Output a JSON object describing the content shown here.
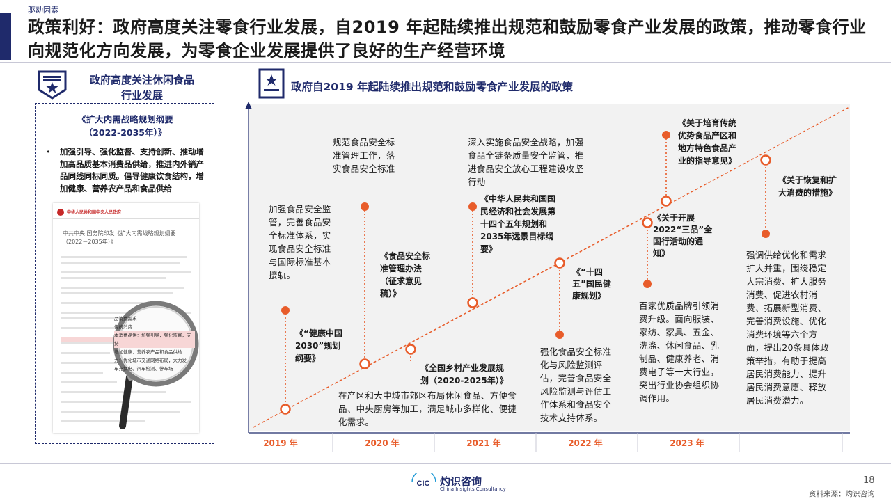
{
  "header": {
    "tag": "驱动因素",
    "title": "政策利好：政府高度关注零食行业发展，自2019 年起陆续推出规范和鼓励零食产业发展的政策，推动零食行业向规范化方向发展，为零食企业发展提供了良好的生产经营环境"
  },
  "left_panel": {
    "heading_line1": "政府高度关注休闲食品",
    "heading_line2": "行业发展",
    "doc_title_line1": "《扩大内需战略规划纲要",
    "doc_title_line2": "（2022-2035年）》",
    "bullet": "加强引导、强化监督、支持创新、推动增加高品质基本消费品供给，推进内外销产品同线同标同质。倡导健康饮食结构，增加健康、营养农产品和食品供给",
    "doc_image": {
      "site_header": "中华人民共和国中央人民政府",
      "doc_heading": "中共中央 国务院印发《扩大内需战略规划纲要（2022－2035年）》",
      "magnified_lines": [
        "品消费需求",
        "传统消费",
        "本消费品供：加强引导，强化监督，支持",
        "增加健康、营养农产品和食品供给",
        "力；优化城市交通网络布局，大力发",
        "车充换电、汽车检测、停车场"
      ]
    }
  },
  "right_panel": {
    "heading": "政府自2019 年起陆续推出规范和鼓励零食产业发展的政策"
  },
  "timeline": {
    "years": [
      "2019 年",
      "2020 年",
      "2021 年",
      "2022 年",
      "2023 年"
    ],
    "events": {
      "e1_title": "《“健康中国2030”规划纲要》",
      "e1_desc": "加强食品安全监管，完善食品安全标准体系，实现食品安全标准与国际标准基本接轨。",
      "e2_desc_top": "规范食品安全标准管理工作，落实食品安全标准",
      "e2_title": "《食品安全标准管理办法（征求意见稿）》",
      "e3_title": "《全国乡村产业发展规划（2020-2025年）》",
      "e3_desc": "在产区和大中城市郊区布局休闲食品、方便食品、中央厨房等加工，满足城市多样化、便捷化需求。",
      "e4_desc_top": "深入实施食品安全战略，加强食品全链条质量安全监管，推进食品安全放心工程建设攻坚行动",
      "e4_title": "《中华人民共和国国民经济和社会发展第十四个五年规划和2035年远景目标纲要》",
      "e5_title": "《“十四五”国民健康规划》",
      "e5_desc": "强化食品安全标准化与风险监测评估，完善食品安全风险监测与评估工作体系和食品安全技术支持体系。",
      "e6_title": "《关于开展2022“三品”全国行活动的通知》",
      "e6_desc": "百家优质品牌引领消费升级。面向服装、家纺、家具、五金、洗涤、休闲食品、乳制品、健康养老、消费电子等十大行业，突出行业协会组织协调作用。",
      "e7_title": "《关于培育传统优势食品产区和地方特色食品产业的指导意见》",
      "e8_title": "《关于恢复和扩大消费的措施》",
      "e8_desc": "强调供给优化和需求扩大并重，围绕稳定大宗消费、扩大服务消费、促进农村消费、拓展新型消费、完善消费设施、优化消费环境等六个方面，提出20条具体政策举措，有助于提高居民消费能力、提升居民消费意愿、释放居民消费潜力。"
    }
  },
  "footer": {
    "logo_cn": "灼识咨询",
    "logo_en": "China Insights Consultancy",
    "logo_mark": "CIC",
    "page": "18",
    "source": "资料来源：灼识咨询"
  },
  "colors": {
    "navy": "#1f2a6b",
    "accent": "#e85c2a",
    "panel": "#f2f2f2"
  }
}
